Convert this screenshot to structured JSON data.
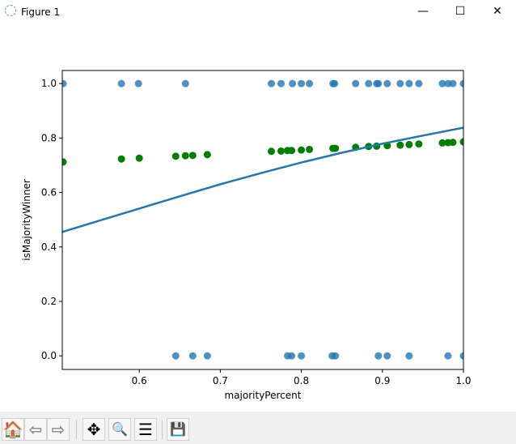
{
  "window": {
    "title": "Figure 1",
    "minimize": "—",
    "maximize": "☐",
    "close": "✕"
  },
  "toolbar": {
    "buttons": [
      {
        "name": "home",
        "glyph": "🏠"
      },
      {
        "name": "back",
        "glyph": "⇦"
      },
      {
        "name": "forward",
        "glyph": "⇨"
      },
      {
        "name": "pan",
        "glyph": "✥"
      },
      {
        "name": "zoom",
        "glyph": "🔍"
      },
      {
        "name": "configure-subplots",
        "glyph": "☰"
      },
      {
        "name": "save",
        "glyph": "💾"
      }
    ]
  },
  "chart_data": {
    "type": "scatter",
    "xlabel": "majorityPercent",
    "ylabel": "isMajorityWinner",
    "xlim": [
      0.505,
      1.0
    ],
    "ylim": [
      -0.05,
      1.048
    ],
    "xticks": [
      "0.6",
      "0.7",
      "0.8",
      "0.9",
      "1.0"
    ],
    "xtick_values": [
      0.6,
      0.7,
      0.8,
      0.9,
      1.0
    ],
    "yticks": [
      "0.0",
      "0.2",
      "0.4",
      "0.6",
      "0.8",
      "1.0"
    ],
    "ytick_values": [
      0,
      0.2,
      0.4,
      0.6,
      0.8,
      1.0
    ],
    "grid": false,
    "colors": {
      "actual": "#1f77b4",
      "predicted": "#008000",
      "curve": "#1f77b4"
    },
    "actual_points": {
      "y1_x": [
        0.506,
        0.578,
        0.599,
        0.657,
        0.763,
        0.775,
        0.789,
        0.8,
        0.81,
        0.839,
        0.841,
        0.867,
        0.883,
        0.893,
        0.895,
        0.906,
        0.922,
        0.933,
        0.945,
        0.974,
        0.981,
        0.987,
        1.0
      ],
      "y0_x": [
        0.645,
        0.666,
        0.684,
        0.783,
        0.788,
        0.8,
        0.838,
        0.842,
        0.895,
        0.906,
        0.933,
        0.981,
        1.0
      ]
    },
    "predicted_points": {
      "x": [
        0.506,
        0.578,
        0.6,
        0.645,
        0.657,
        0.666,
        0.684,
        0.763,
        0.775,
        0.783,
        0.788,
        0.8,
        0.81,
        0.839,
        0.842,
        0.867,
        0.883,
        0.893,
        0.906,
        0.922,
        0.933,
        0.945,
        0.974,
        0.981,
        0.987,
        1.0
      ],
      "y": [
        0.712,
        0.723,
        0.726,
        0.733,
        0.735,
        0.736,
        0.739,
        0.751,
        0.752,
        0.754,
        0.754,
        0.756,
        0.758,
        0.762,
        0.762,
        0.766,
        0.769,
        0.77,
        0.772,
        0.774,
        0.776,
        0.778,
        0.782,
        0.783,
        0.784,
        0.786
      ]
    },
    "curve": {
      "x": [
        0.505,
        0.55,
        0.6,
        0.65,
        0.7,
        0.75,
        0.8,
        0.85,
        0.9,
        0.95,
        1.0
      ],
      "y": [
        0.455,
        0.496,
        0.541,
        0.586,
        0.63,
        0.671,
        0.71,
        0.746,
        0.779,
        0.809,
        0.838
      ]
    }
  }
}
